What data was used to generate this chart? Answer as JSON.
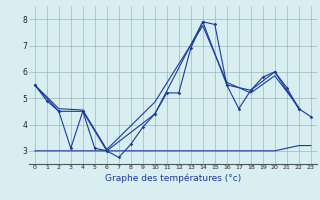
{
  "xlabel": "Graphe des températures (°c)",
  "bg_color": "#d8eef0",
  "grid_color": "#9ab8c0",
  "line_color": "#1a3a9e",
  "xlim": [
    -0.5,
    23.5
  ],
  "ylim": [
    2.5,
    8.5
  ],
  "xticks": [
    0,
    1,
    2,
    3,
    4,
    5,
    6,
    7,
    8,
    9,
    10,
    11,
    12,
    13,
    14,
    15,
    16,
    17,
    18,
    19,
    20,
    21,
    22,
    23
  ],
  "yticks": [
    3,
    4,
    5,
    6,
    7,
    8
  ],
  "line1": {
    "x": [
      0,
      1,
      2,
      3,
      4,
      5,
      6,
      7,
      8,
      9,
      10,
      11,
      12,
      13,
      14,
      15,
      16,
      17,
      18,
      19,
      20,
      21,
      22,
      23
    ],
    "y": [
      5.5,
      4.9,
      4.5,
      3.1,
      4.5,
      3.1,
      3.0,
      2.75,
      3.25,
      3.9,
      4.4,
      5.2,
      5.2,
      6.9,
      7.9,
      7.8,
      5.5,
      4.6,
      5.3,
      5.8,
      6.0,
      5.4,
      4.6,
      4.3
    ]
  },
  "line2": {
    "x": [
      0,
      2,
      4,
      6,
      10,
      14,
      16,
      18,
      20,
      22
    ],
    "y": [
      5.5,
      4.5,
      4.5,
      3.0,
      4.4,
      7.9,
      5.5,
      5.3,
      6.0,
      4.6
    ]
  },
  "line3": {
    "x": [
      0,
      2,
      4,
      6,
      10,
      14,
      16,
      18,
      20,
      22
    ],
    "y": [
      5.5,
      4.6,
      4.55,
      3.05,
      4.85,
      7.75,
      5.6,
      5.2,
      5.85,
      4.65
    ]
  },
  "line4": {
    "x": [
      0,
      20,
      22,
      23
    ],
    "y": [
      3.0,
      3.0,
      3.2,
      3.2
    ]
  }
}
